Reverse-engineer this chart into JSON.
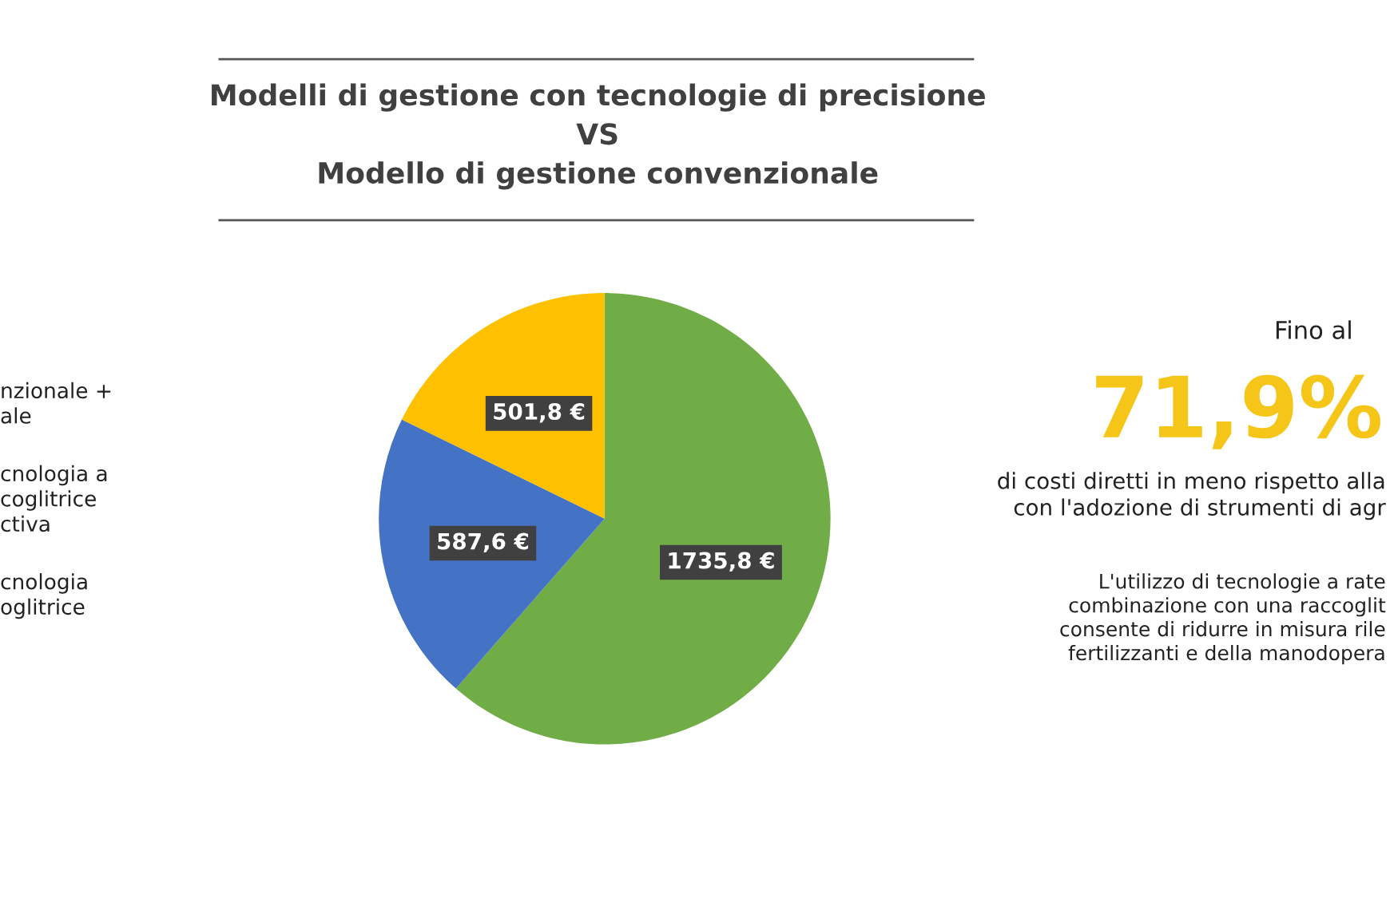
{
  "chart_data": {
    "type": "pie",
    "title": "Modelli di gestione con tecnologie di precisione\nVS\nModello di gestione convenzionale",
    "categories": [
      null,
      null,
      null
    ],
    "values": [
      1735.8,
      587.6,
      501.8
    ],
    "colors": [
      "#70ad47",
      "#4472c4",
      "#ffc000"
    ],
    "value_labels": [
      "1735,8 €",
      "587,6 €",
      "501,8 €"
    ],
    "annotations": [
      "nzionale +\nale",
      "cnologia a\ncoglitrice\nctiva",
      "cnologia\noglitrice",
      "Fino al",
      "71,9%",
      "di costi diretti in meno rispetto alla\ncon l'adozione di strumenti di agr",
      "L'utilizzo di tecnologie a rate\ncombinazione con una raccoglit\nconsente di ridurre in misura rile\nfertilizzanti e della manodopera"
    ]
  }
}
